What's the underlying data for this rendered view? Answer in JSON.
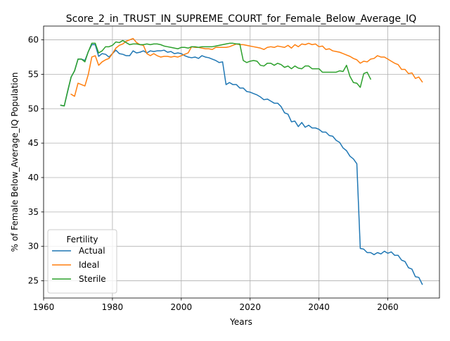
{
  "chart_data": {
    "type": "line",
    "title": "Score_2_in_TRUST_IN_SUPREME_COURT_for_Female_Below_Average_IQ",
    "xlabel": "Years",
    "ylabel": "% of Female Below_Average_IQ Population",
    "xlim": [
      1960,
      2075
    ],
    "ylim": [
      22.5,
      62
    ],
    "xticks": [
      1960,
      1980,
      2000,
      2020,
      2040,
      2060
    ],
    "yticks": [
      25,
      30,
      35,
      40,
      45,
      50,
      55,
      60
    ],
    "grid": true,
    "legend": {
      "title": "Fertility",
      "placement": "lower-left"
    },
    "series": [
      {
        "name": "Actual",
        "color": "#1f77b4",
        "points": [
          [
            1965,
            50.5
          ],
          [
            1966,
            50.4
          ],
          [
            1967,
            52.5
          ],
          [
            1968,
            54.6
          ],
          [
            1969,
            55.5
          ],
          [
            1970,
            57.2
          ],
          [
            1971,
            57.2
          ],
          [
            1972,
            57.0
          ],
          [
            1973,
            58.3
          ],
          [
            1974,
            59.3
          ],
          [
            1975,
            59.3
          ],
          [
            1976,
            57.6
          ],
          [
            1977,
            58.0
          ],
          [
            1978,
            57.9
          ],
          [
            1979,
            57.5
          ],
          [
            1980,
            58.0
          ],
          [
            1981,
            58.5
          ],
          [
            1982,
            58.0
          ],
          [
            1983,
            57.9
          ],
          [
            1984,
            57.7
          ],
          [
            1985,
            57.7
          ],
          [
            1986,
            58.4
          ],
          [
            1987,
            58.1
          ],
          [
            1988,
            58.2
          ],
          [
            1989,
            58.4
          ],
          [
            1990,
            58.1
          ],
          [
            1991,
            58.4
          ],
          [
            1992,
            58.3
          ],
          [
            1993,
            58.4
          ],
          [
            1994,
            58.4
          ],
          [
            1995,
            58.5
          ],
          [
            1996,
            58.2
          ],
          [
            1997,
            58.3
          ],
          [
            1998,
            58.0
          ],
          [
            1999,
            58.1
          ],
          [
            2000,
            58.0
          ],
          [
            2001,
            57.7
          ],
          [
            2002,
            57.5
          ],
          [
            2003,
            57.4
          ],
          [
            2004,
            57.5
          ],
          [
            2005,
            57.3
          ],
          [
            2006,
            57.7
          ],
          [
            2007,
            57.5
          ],
          [
            2008,
            57.4
          ],
          [
            2009,
            57.2
          ],
          [
            2010,
            57.0
          ],
          [
            2011,
            56.7
          ],
          [
            2012,
            56.8
          ],
          [
            2013,
            53.5
          ],
          [
            2014,
            53.8
          ],
          [
            2015,
            53.5
          ],
          [
            2016,
            53.5
          ],
          [
            2017,
            53.0
          ],
          [
            2018,
            53.0
          ],
          [
            2019,
            52.5
          ],
          [
            2020,
            52.4
          ],
          [
            2021,
            52.2
          ],
          [
            2022,
            52.0
          ],
          [
            2023,
            51.7
          ],
          [
            2024,
            51.3
          ],
          [
            2025,
            51.4
          ],
          [
            2026,
            51.1
          ],
          [
            2027,
            50.8
          ],
          [
            2028,
            50.8
          ],
          [
            2029,
            50.3
          ],
          [
            2030,
            49.4
          ],
          [
            2031,
            49.2
          ],
          [
            2032,
            48.1
          ],
          [
            2033,
            48.2
          ],
          [
            2034,
            47.4
          ],
          [
            2035,
            48.0
          ],
          [
            2036,
            47.3
          ],
          [
            2037,
            47.6
          ],
          [
            2038,
            47.2
          ],
          [
            2039,
            47.2
          ],
          [
            2040,
            47.0
          ],
          [
            2041,
            46.6
          ],
          [
            2042,
            46.6
          ],
          [
            2043,
            46.1
          ],
          [
            2044,
            46.0
          ],
          [
            2045,
            45.4
          ],
          [
            2046,
            45.1
          ],
          [
            2047,
            44.3
          ],
          [
            2048,
            43.9
          ],
          [
            2049,
            43.1
          ],
          [
            2050,
            42.7
          ],
          [
            2051,
            42.0
          ],
          [
            2052,
            29.7
          ],
          [
            2053,
            29.6
          ],
          [
            2054,
            29.1
          ],
          [
            2055,
            29.1
          ],
          [
            2056,
            28.8
          ],
          [
            2057,
            29.1
          ],
          [
            2058,
            28.9
          ],
          [
            2059,
            29.3
          ],
          [
            2060,
            29.0
          ],
          [
            2061,
            29.2
          ],
          [
            2062,
            28.7
          ],
          [
            2063,
            28.7
          ],
          [
            2064,
            28.0
          ],
          [
            2065,
            27.8
          ],
          [
            2066,
            26.9
          ],
          [
            2067,
            26.7
          ],
          [
            2068,
            25.6
          ],
          [
            2069,
            25.5
          ],
          [
            2070,
            24.5
          ]
        ]
      },
      {
        "name": "Ideal",
        "color": "#ff7f0e",
        "points": [
          [
            1968,
            52.1
          ],
          [
            1969,
            51.8
          ],
          [
            1970,
            53.7
          ],
          [
            1971,
            53.5
          ],
          [
            1972,
            53.3
          ],
          [
            1973,
            55.0
          ],
          [
            1974,
            57.5
          ],
          [
            1975,
            57.7
          ],
          [
            1976,
            56.3
          ],
          [
            1977,
            56.8
          ],
          [
            1978,
            57.1
          ],
          [
            1979,
            57.3
          ],
          [
            1980,
            58.0
          ],
          [
            1981,
            58.8
          ],
          [
            1982,
            59.2
          ],
          [
            1983,
            59.4
          ],
          [
            1984,
            59.8
          ],
          [
            1985,
            60.0
          ],
          [
            1986,
            60.2
          ],
          [
            1987,
            59.6
          ],
          [
            1988,
            59.3
          ],
          [
            1989,
            59.2
          ],
          [
            1990,
            58.0
          ],
          [
            1991,
            57.7
          ],
          [
            1992,
            58.0
          ],
          [
            1993,
            57.7
          ],
          [
            1994,
            57.5
          ],
          [
            1995,
            57.6
          ],
          [
            1996,
            57.6
          ],
          [
            1997,
            57.5
          ],
          [
            1998,
            57.6
          ],
          [
            1999,
            57.5
          ],
          [
            2000,
            57.7
          ],
          [
            2001,
            57.9
          ],
          [
            2002,
            58.1
          ],
          [
            2003,
            59.0
          ],
          [
            2004,
            58.9
          ],
          [
            2005,
            58.9
          ],
          [
            2006,
            58.8
          ],
          [
            2007,
            58.7
          ],
          [
            2008,
            58.7
          ],
          [
            2009,
            58.6
          ],
          [
            2010,
            58.9
          ],
          [
            2011,
            58.9
          ],
          [
            2012,
            58.9
          ],
          [
            2013,
            58.9
          ],
          [
            2014,
            59.0
          ],
          [
            2015,
            59.2
          ],
          [
            2016,
            59.4
          ],
          [
            2017,
            59.3
          ],
          [
            2018,
            59.3
          ],
          [
            2019,
            59.2
          ],
          [
            2020,
            59.1
          ],
          [
            2021,
            59.0
          ],
          [
            2022,
            58.9
          ],
          [
            2023,
            58.8
          ],
          [
            2024,
            58.6
          ],
          [
            2025,
            58.9
          ],
          [
            2026,
            59.0
          ],
          [
            2027,
            58.9
          ],
          [
            2028,
            59.1
          ],
          [
            2029,
            59.0
          ],
          [
            2030,
            58.9
          ],
          [
            2031,
            59.2
          ],
          [
            2032,
            58.8
          ],
          [
            2033,
            59.3
          ],
          [
            2034,
            59.0
          ],
          [
            2035,
            59.4
          ],
          [
            2036,
            59.3
          ],
          [
            2037,
            59.5
          ],
          [
            2038,
            59.3
          ],
          [
            2039,
            59.4
          ],
          [
            2040,
            59.0
          ],
          [
            2041,
            59.1
          ],
          [
            2042,
            58.6
          ],
          [
            2043,
            58.7
          ],
          [
            2044,
            58.4
          ],
          [
            2045,
            58.3
          ],
          [
            2046,
            58.2
          ],
          [
            2047,
            58.0
          ],
          [
            2048,
            57.8
          ],
          [
            2049,
            57.6
          ],
          [
            2050,
            57.3
          ],
          [
            2051,
            57.1
          ],
          [
            2052,
            56.6
          ],
          [
            2053,
            56.9
          ],
          [
            2054,
            56.8
          ],
          [
            2055,
            57.2
          ],
          [
            2056,
            57.3
          ],
          [
            2057,
            57.7
          ],
          [
            2058,
            57.5
          ],
          [
            2059,
            57.5
          ],
          [
            2060,
            57.2
          ],
          [
            2061,
            56.9
          ],
          [
            2062,
            56.6
          ],
          [
            2063,
            56.4
          ],
          [
            2064,
            55.7
          ],
          [
            2065,
            55.7
          ],
          [
            2066,
            55.1
          ],
          [
            2067,
            55.2
          ],
          [
            2068,
            54.4
          ],
          [
            2069,
            54.6
          ],
          [
            2070,
            53.9
          ]
        ]
      },
      {
        "name": "Sterile",
        "color": "#2ca02c",
        "points": [
          [
            1965,
            50.5
          ],
          [
            1966,
            50.4
          ],
          [
            1967,
            52.6
          ],
          [
            1968,
            54.6
          ],
          [
            1969,
            55.5
          ],
          [
            1970,
            57.2
          ],
          [
            1971,
            57.2
          ],
          [
            1972,
            56.8
          ],
          [
            1973,
            58.3
          ],
          [
            1974,
            59.5
          ],
          [
            1975,
            59.5
          ],
          [
            1976,
            58.1
          ],
          [
            1977,
            58.4
          ],
          [
            1978,
            59.0
          ],
          [
            1979,
            59.0
          ],
          [
            1980,
            59.2
          ],
          [
            1981,
            59.7
          ],
          [
            1982,
            59.6
          ],
          [
            1983,
            59.9
          ],
          [
            1984,
            59.6
          ],
          [
            1985,
            59.3
          ],
          [
            1986,
            59.4
          ],
          [
            1987,
            59.4
          ],
          [
            1988,
            59.3
          ],
          [
            1989,
            59.3
          ],
          [
            1990,
            59.4
          ],
          [
            1991,
            59.3
          ],
          [
            1992,
            59.4
          ],
          [
            1993,
            59.4
          ],
          [
            1994,
            59.3
          ],
          [
            1995,
            59.1
          ],
          [
            1996,
            59.0
          ],
          [
            1997,
            58.9
          ],
          [
            1998,
            58.8
          ],
          [
            1999,
            58.7
          ],
          [
            2000,
            58.9
          ],
          [
            2001,
            58.9
          ],
          [
            2002,
            58.8
          ],
          [
            2003,
            59.0
          ],
          [
            2004,
            59.0
          ],
          [
            2005,
            58.9
          ],
          [
            2006,
            59.0
          ],
          [
            2007,
            59.0
          ],
          [
            2008,
            59.0
          ],
          [
            2009,
            59.0
          ],
          [
            2010,
            59.1
          ],
          [
            2011,
            59.2
          ],
          [
            2012,
            59.3
          ],
          [
            2013,
            59.4
          ],
          [
            2014,
            59.5
          ],
          [
            2015,
            59.5
          ],
          [
            2016,
            59.4
          ],
          [
            2017,
            59.4
          ],
          [
            2018,
            57.0
          ],
          [
            2019,
            56.7
          ],
          [
            2020,
            56.9
          ],
          [
            2021,
            57.0
          ],
          [
            2022,
            56.9
          ],
          [
            2023,
            56.3
          ],
          [
            2024,
            56.2
          ],
          [
            2025,
            56.6
          ],
          [
            2026,
            56.6
          ],
          [
            2027,
            56.3
          ],
          [
            2028,
            56.6
          ],
          [
            2029,
            56.4
          ],
          [
            2030,
            56.0
          ],
          [
            2031,
            56.2
          ],
          [
            2032,
            55.8
          ],
          [
            2033,
            56.2
          ],
          [
            2034,
            55.9
          ],
          [
            2035,
            55.8
          ],
          [
            2036,
            56.2
          ],
          [
            2037,
            56.2
          ],
          [
            2038,
            55.8
          ],
          [
            2039,
            55.8
          ],
          [
            2040,
            55.8
          ],
          [
            2041,
            55.3
          ],
          [
            2042,
            55.3
          ],
          [
            2043,
            55.3
          ],
          [
            2044,
            55.3
          ],
          [
            2045,
            55.3
          ],
          [
            2046,
            55.5
          ],
          [
            2047,
            55.4
          ],
          [
            2048,
            56.3
          ],
          [
            2049,
            54.7
          ],
          [
            2050,
            53.8
          ],
          [
            2051,
            53.7
          ],
          [
            2052,
            53.1
          ],
          [
            2053,
            55.1
          ],
          [
            2054,
            55.3
          ],
          [
            2055,
            54.3
          ]
        ]
      }
    ]
  }
}
